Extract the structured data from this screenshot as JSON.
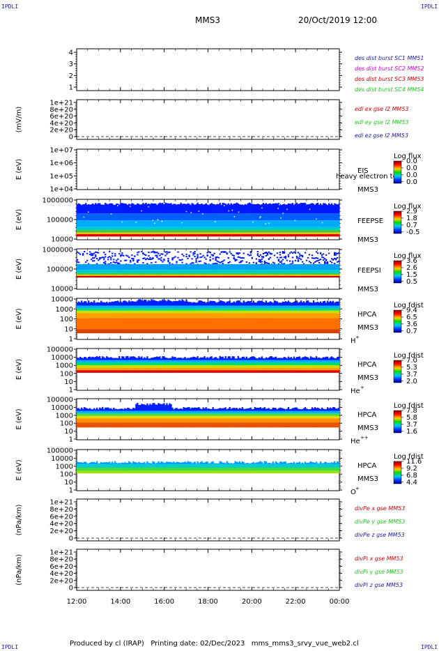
{
  "corners": {
    "tl": "IPDLI",
    "tr": "IPDLI",
    "bl": "IPDLI",
    "br": "IPDLI"
  },
  "header": {
    "mission": "MMS3",
    "datetime": "20/Oct/2019 12:00"
  },
  "footer": {
    "text": "Produced by cl (IRAP)   Printing date: 02/Dec/2023   mms_mms3_srvy_vue_web2.cl"
  },
  "colors": {
    "red": "#d40000",
    "green": "#1ec81e",
    "blue": "#1a1aa8",
    "magenta": "#d200d2"
  },
  "chart_data": [
    {
      "type": "line",
      "panel": "des-dist-burst",
      "ytick_labels": [
        "4",
        "3",
        "2",
        "1"
      ],
      "ylim": [
        0.7,
        4.3
      ],
      "legend": [
        {
          "text": "des dist burst SC1 MM51",
          "color": "#1a1aa8"
        },
        {
          "text": "des dist burst SC2 MM52",
          "color": "#d200d2"
        },
        {
          "text": "des dist burst SC3 MM53",
          "color": "#d40000"
        },
        {
          "text": "des dist burst SC4 MM54",
          "color": "#1ec81e"
        }
      ]
    },
    {
      "type": "line",
      "panel": "edi-e-gse",
      "ylabel": "(mV/m)",
      "ytick_labels": [
        "1e+21",
        "8e+20",
        "6e+20",
        "4e+20",
        "2e+20",
        "0"
      ],
      "legend": [
        {
          "text": "edi ex gse l2 MM53",
          "color": "#d40000"
        },
        {
          "text": "edi ey gse l2 MM53",
          "color": "#1ec81e"
        },
        {
          "text": "edi ez gse l2 MM53",
          "color": "#1a1aa8"
        }
      ],
      "zero_line": true
    },
    {
      "type": "heatmap",
      "panel": "eis",
      "ylabel": "E (eV)",
      "ytick_labels": [
        "1e+07",
        "1e+06",
        "1e+05",
        "1e+04"
      ],
      "instrument": [
        "EIS",
        "MMS3"
      ],
      "overlay_text": "heavy electron to",
      "colorbar": {
        "title": "Log flux",
        "labels": [
          "0.0",
          "0.0",
          "0.0",
          "0.0"
        ]
      }
    },
    {
      "type": "heatmap",
      "panel": "feeps-e",
      "ylabel": "E (eV)",
      "ytick_labels": [
        "1000000",
        "100000",
        "10000"
      ],
      "instrument": [
        "FEEPSE",
        "MMS3"
      ],
      "colorbar": {
        "title": "Log flux",
        "labels": [
          "2.9",
          "1.8",
          "0.7",
          "-0.5"
        ]
      }
    },
    {
      "type": "heatmap",
      "panel": "feeps-i",
      "ylabel": "E (eV)",
      "ytick_labels": [
        "1000000",
        "100000",
        "10000"
      ],
      "instrument": [
        "FEEPSI",
        "MMS3"
      ],
      "colorbar": {
        "title": "Log flux",
        "labels": [
          "3.6",
          "2.6",
          "1.5",
          "0.5"
        ]
      }
    },
    {
      "type": "heatmap",
      "panel": "hpca-h",
      "ylabel": "E (eV)",
      "ytick_labels": [
        "10000",
        "1000",
        "100",
        "10",
        "1"
      ],
      "instrument": [
        "HPCA",
        "MMS3"
      ],
      "species": "H",
      "species_sup": "+",
      "colorbar": {
        "title": "Log fdist",
        "labels": [
          "9.4",
          "6.5",
          "3.6",
          "0.7"
        ]
      }
    },
    {
      "type": "heatmap",
      "panel": "hpca-he1",
      "ylabel": "E (eV)",
      "ytick_labels": [
        "100000",
        "10000",
        "1000",
        "100",
        "10",
        "1"
      ],
      "instrument": [
        "HPCA",
        "MMS3"
      ],
      "species": "He",
      "species_sup": "+",
      "colorbar": {
        "title": "Log fdist",
        "labels": [
          "7.0",
          "5.3",
          "3.7",
          "2.0"
        ]
      }
    },
    {
      "type": "heatmap",
      "panel": "hpca-he2",
      "ylabel": "E (eV)",
      "ytick_labels": [
        "100000",
        "10000",
        "1000",
        "100",
        "10",
        "1"
      ],
      "instrument": [
        "HPCA",
        "MMS3"
      ],
      "species": "He",
      "species_sup": "++",
      "colorbar": {
        "title": "Log fdist",
        "labels": [
          "7.8",
          "5.8",
          "3.7",
          "1.6"
        ]
      }
    },
    {
      "type": "heatmap",
      "panel": "hpca-o",
      "ylabel": "E (eV)",
      "ytick_labels": [
        "100000",
        "10000",
        "1000",
        "100",
        "10",
        "1"
      ],
      "instrument": [
        "HPCA",
        "MMS3"
      ],
      "species": "O",
      "species_sup": "+",
      "colorbar": {
        "title": "Log fdist",
        "labels": [
          "11.6",
          "9.2",
          "6.8",
          "4.4"
        ]
      }
    },
    {
      "type": "line",
      "panel": "divpe",
      "ylabel": "(nPa/km)",
      "ytick_labels": [
        "1e+21",
        "8e+20",
        "6e+20",
        "4e+20",
        "2e+20",
        "0"
      ],
      "legend": [
        {
          "text": "divPe x gse MM53",
          "color": "#d40000"
        },
        {
          "text": "divPe y gse MM53",
          "color": "#1ec81e"
        },
        {
          "text": "divPe z gse MM53",
          "color": "#1a1aa8"
        }
      ],
      "zero_line": true
    },
    {
      "type": "line",
      "panel": "divpi",
      "ylabel": "(nPa/km)",
      "ytick_labels": [
        "1e+21",
        "8e+20",
        "6e+20",
        "4e+20",
        "2e+20",
        "0"
      ],
      "legend": [
        {
          "text": "divPi x gse MM53",
          "color": "#d40000"
        },
        {
          "text": "divPi y gse MM53",
          "color": "#1ec81e"
        },
        {
          "text": "divPi z gse MM53",
          "color": "#1a1aa8"
        }
      ],
      "zero_line": true
    }
  ],
  "xaxis": {
    "tick_labels": [
      "12:00",
      "14:00",
      "16:00",
      "18:00",
      "20:00",
      "22:00",
      "00:00"
    ]
  }
}
